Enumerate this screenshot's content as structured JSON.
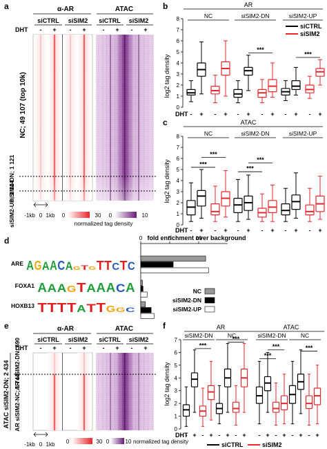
{
  "panels": {
    "a": {
      "letter": "a",
      "col_groups": [
        "α-AR",
        "ATAC"
      ],
      "sub_cols": [
        "siCTRL",
        "siSIM2",
        "siCTRL",
        "siSIM2"
      ],
      "dht_label": "DHT",
      "minus": "-",
      "plus": "+",
      "row_labels": [
        "NC; 49 107 (top 10k)",
        "siSIM2-DN; 1 121",
        "siSIM2-UP; 1 144"
      ],
      "axis_labels": [
        "-1kb",
        "0",
        "1kb"
      ],
      "scale_ar": [
        "0",
        "30"
      ],
      "scale_atac": [
        "0",
        "10"
      ],
      "scale_caption": "normalized tag density"
    },
    "b": {
      "letter": "b",
      "title": "AR",
      "groups": [
        "NC",
        "siSIM2-DN",
        "siSIM2-UP"
      ],
      "ylabel": "log2 tag density",
      "yticks": [
        "0",
        "1",
        "2",
        "3",
        "4",
        "5",
        "6",
        "7",
        "8"
      ],
      "dht_label": "DHT",
      "sig": "***",
      "legend": [
        "siCTRL",
        "siSIM2"
      ]
    },
    "c": {
      "letter": "c",
      "title": "ATAC",
      "groups": [
        "NC",
        "siSIM2-DN",
        "siSIM2-UP"
      ],
      "ylabel": "log2 tag density",
      "yticks": [
        "0",
        "1",
        "2",
        "3",
        "4",
        "5",
        "6",
        "7",
        "8"
      ],
      "dht_label": "DHT",
      "sig": "***"
    },
    "d": {
      "letter": "d",
      "title": "fold enrichment over background",
      "xticks": [
        "0",
        "5",
        "10"
      ],
      "motifs": [
        {
          "name": "ARE",
          "seq": "AGAACAGTGTTCTC"
        },
        {
          "name": "FOXA1",
          "seq": "AAAGTAAACA"
        },
        {
          "name": "HOXB13",
          "seq": "TTTTATTGGC"
        }
      ],
      "legend": [
        "NC",
        "siSIM2-DN",
        "siSIM2-UP"
      ]
    },
    "e": {
      "letter": "e",
      "col_groups": [
        "α-AR",
        "ATAC"
      ],
      "sub_cols": [
        "siCTRL",
        "siSIM2",
        "siCTRL",
        "siSIM2"
      ],
      "dht_label": "DHT",
      "outer_label": "ATAC siSIM2-DN; 2 434",
      "row_labels": [
        "AR siSIM2-DN; 690",
        "AR siSIM2-NC; 1 744"
      ],
      "axis_labels": [
        "-1kb",
        "0",
        "1kb"
      ],
      "scale_ar": [
        "0",
        "30"
      ],
      "scale_atac": [
        "0",
        "10"
      ],
      "scale_caption": "normalized tag density"
    },
    "f": {
      "letter": "f",
      "group_titles": [
        "AR",
        "ATAC"
      ],
      "sub_groups": [
        "siSIM2-DN",
        "NC",
        "siSIM2-DN",
        "NC"
      ],
      "ylabel": "log2 tag density",
      "yticks": [
        "0",
        "1",
        "2",
        "3",
        "4",
        "5",
        "6",
        "7"
      ],
      "dht_label": "DHT",
      "sig": "***",
      "legend": [
        "siCTRL",
        "siSIM2"
      ]
    }
  },
  "colors": {
    "ar_red": "#e8262b",
    "atac_purple": "#8a3a96",
    "ctrl": "#000000",
    "sim2": "#e8262b"
  },
  "chart_data": [
    {
      "type": "box",
      "panel": "b",
      "title": "AR",
      "ylabel": "log2 tag density",
      "ylim": [
        0,
        8
      ],
      "groups": [
        "NC",
        "siSIM2-DN",
        "siSIM2-UP"
      ],
      "boxes": [
        {
          "group": "NC",
          "cond": "siCTRL",
          "dht": "-",
          "q": [
            0,
            0.5,
            1.1,
            1.3,
            1.6,
            2.4
          ]
        },
        {
          "group": "NC",
          "cond": "siCTRL",
          "dht": "+",
          "q": [
            0,
            1.2,
            2.8,
            3.4,
            4.0,
            5.9
          ]
        },
        {
          "group": "NC",
          "cond": "siSIM2",
          "dht": "-",
          "q": [
            0,
            0.4,
            1.2,
            1.5,
            1.9,
            2.9
          ]
        },
        {
          "group": "NC",
          "cond": "siSIM2",
          "dht": "+",
          "q": [
            0,
            1.0,
            2.9,
            3.5,
            4.1,
            6.0
          ]
        },
        {
          "group": "siSIM2-DN",
          "cond": "siCTRL",
          "dht": "-",
          "q": [
            0,
            0.4,
            0.9,
            1.2,
            1.6,
            2.4
          ]
        },
        {
          "group": "siSIM2-DN",
          "cond": "siCTRL",
          "dht": "+",
          "q": [
            0,
            1.5,
            2.9,
            3.3,
            3.6,
            4.7
          ]
        },
        {
          "group": "siSIM2-DN",
          "cond": "siSIM2",
          "dht": "-",
          "q": [
            0,
            0.4,
            0.9,
            1.3,
            1.6,
            2.5
          ]
        },
        {
          "group": "siSIM2-DN",
          "cond": "siSIM2",
          "dht": "+",
          "q": [
            0,
            0.9,
            1.4,
            1.9,
            2.5,
            4.0
          ]
        },
        {
          "group": "siSIM2-UP",
          "cond": "siCTRL",
          "dht": "-",
          "q": [
            0,
            0.6,
            1.1,
            1.4,
            1.7,
            2.4
          ]
        },
        {
          "group": "siSIM2-UP",
          "cond": "siCTRL",
          "dht": "+",
          "q": [
            0,
            1.1,
            1.6,
            1.9,
            2.4,
            3.6
          ]
        },
        {
          "group": "siSIM2-UP",
          "cond": "siSIM2",
          "dht": "-",
          "q": [
            0,
            0.8,
            1.3,
            1.6,
            2.0,
            2.8
          ]
        },
        {
          "group": "siSIM2-UP",
          "cond": "siSIM2",
          "dht": "+",
          "q": [
            0,
            2.0,
            2.8,
            3.2,
            3.5,
            4.3
          ]
        }
      ],
      "significance": [
        {
          "group": "siSIM2-DN",
          "text": "***"
        },
        {
          "group": "siSIM2-UP",
          "text": "***"
        }
      ]
    },
    {
      "type": "box",
      "panel": "c",
      "title": "ATAC",
      "ylabel": "log2 tag density",
      "ylim": [
        0,
        8
      ],
      "groups": [
        "NC",
        "siSIM2-DN",
        "siSIM2-UP"
      ],
      "boxes": [
        {
          "group": "NC",
          "cond": "siCTRL",
          "dht": "-",
          "q": [
            0,
            0.3,
            0.9,
            1.6,
            2.2,
            3.8
          ]
        },
        {
          "group": "NC",
          "cond": "siCTRL",
          "dht": "+",
          "q": [
            0,
            0.6,
            1.7,
            2.6,
            3.1,
            5.0
          ]
        },
        {
          "group": "NC",
          "cond": "siSIM2",
          "dht": "-",
          "q": [
            0,
            0.3,
            0.9,
            1.2,
            1.9,
            3.5
          ]
        },
        {
          "group": "NC",
          "cond": "siSIM2",
          "dht": "+",
          "q": [
            0,
            0.7,
            1.7,
            2.4,
            3.0,
            4.9
          ]
        },
        {
          "group": "siSIM2-DN",
          "cond": "siCTRL",
          "dht": "-",
          "q": [
            0,
            0.3,
            1.1,
            1.8,
            2.4,
            4.1
          ]
        },
        {
          "group": "siSIM2-DN",
          "cond": "siCTRL",
          "dht": "+",
          "q": [
            0,
            0.5,
            1.3,
            2.0,
            2.6,
            4.5
          ]
        },
        {
          "group": "siSIM2-DN",
          "cond": "siSIM2",
          "dht": "-",
          "q": [
            0,
            0.3,
            0.7,
            1.1,
            1.5,
            2.8
          ]
        },
        {
          "group": "siSIM2-DN",
          "cond": "siSIM2",
          "dht": "+",
          "q": [
            0,
            0.3,
            1.1,
            1.6,
            2.2,
            3.6
          ]
        },
        {
          "group": "siSIM2-UP",
          "cond": "siCTRL",
          "dht": "-",
          "q": [
            0,
            0.3,
            0.9,
            1.3,
            1.9,
            3.3
          ]
        },
        {
          "group": "siSIM2-UP",
          "cond": "siCTRL",
          "dht": "+",
          "q": [
            0,
            0.6,
            1.4,
            2.1,
            2.7,
            4.7
          ]
        },
        {
          "group": "siSIM2-UP",
          "cond": "siSIM2",
          "dht": "-",
          "q": [
            0,
            0.3,
            0.9,
            1.2,
            1.8,
            3.3
          ]
        },
        {
          "group": "siSIM2-UP",
          "cond": "siSIM2",
          "dht": "+",
          "q": [
            0,
            0.5,
            1.2,
            1.9,
            2.6,
            4.4
          ]
        }
      ],
      "significance": [
        {
          "group": "NC",
          "text": "***"
        },
        {
          "group": "NC",
          "text": "***"
        },
        {
          "group": "siSIM2-DN",
          "text": "***"
        },
        {
          "group": "siSIM2-DN",
          "text": "***"
        }
      ]
    },
    {
      "type": "bar",
      "panel": "d",
      "title": "fold enrichment over background",
      "xlim": [
        0,
        15
      ],
      "categories": [
        "ARE",
        "FOXA1",
        "HOXB13"
      ],
      "series": [
        {
          "name": "NC",
          "values": [
            11.2,
            0.3,
            0.8
          ]
        },
        {
          "name": "siSIM2-DN",
          "values": [
            5.6,
            0.4,
            1.8
          ]
        },
        {
          "name": "siSIM2-UP",
          "values": [
            11.7,
            1.1,
            2.3
          ]
        }
      ]
    },
    {
      "type": "box",
      "panel": "f",
      "ylabel": "log2 tag density",
      "ylim": [
        0,
        7
      ],
      "groups": [
        "AR siSIM2-DN",
        "AR NC",
        "ATAC siSIM2-DN",
        "ATAC NC"
      ],
      "boxes": [
        {
          "group": "AR siSIM2-DN",
          "cond": "siCTRL",
          "dht": "-",
          "q": [
            0,
            0.2,
            1.0,
            1.5,
            1.9,
            3.3
          ]
        },
        {
          "group": "AR siSIM2-DN",
          "cond": "siCTRL",
          "dht": "+",
          "q": [
            0,
            1.3,
            3.3,
            3.9,
            4.4,
            6.2
          ]
        },
        {
          "group": "AR siSIM2-DN",
          "cond": "siSIM2",
          "dht": "-",
          "q": [
            0,
            0.2,
            1.0,
            1.4,
            1.8,
            3.2
          ]
        },
        {
          "group": "AR siSIM2-DN",
          "cond": "siSIM2",
          "dht": "+",
          "q": [
            0,
            0.7,
            2.3,
            2.9,
            3.4,
            5.3
          ]
        },
        {
          "group": "AR NC",
          "cond": "siCTRL",
          "dht": "-",
          "q": [
            0,
            0.4,
            1.2,
            1.6,
            2.0,
            3.4
          ]
        },
        {
          "group": "AR NC",
          "cond": "siCTRL",
          "dht": "+",
          "q": [
            0,
            1.3,
            3.3,
            4.0,
            4.7,
            6.7
          ]
        },
        {
          "group": "AR NC",
          "cond": "siSIM2",
          "dht": "-",
          "q": [
            0,
            0.3,
            1.3,
            1.6,
            2.1,
            3.4
          ]
        },
        {
          "group": "AR NC",
          "cond": "siSIM2",
          "dht": "+",
          "q": [
            0,
            1.3,
            3.3,
            4.0,
            4.7,
            6.7
          ]
        },
        {
          "group": "ATAC siSIM2-DN",
          "cond": "siCTRL",
          "dht": "-",
          "q": [
            0,
            0.4,
            2.0,
            2.6,
            3.3,
            5.3
          ]
        },
        {
          "group": "ATAC siSIM2-DN",
          "cond": "siCTRL",
          "dht": "+",
          "q": [
            0,
            1.3,
            3.0,
            3.6,
            4.1,
            6.0
          ]
        },
        {
          "group": "ATAC siSIM2-DN",
          "cond": "siSIM2",
          "dht": "-",
          "q": [
            0,
            0.3,
            1.3,
            1.6,
            2.1,
            3.6
          ]
        },
        {
          "group": "ATAC siSIM2-DN",
          "cond": "siSIM2",
          "dht": "+",
          "q": [
            0,
            0.4,
            1.5,
            2.0,
            2.6,
            4.3
          ]
        },
        {
          "group": "ATAC NC",
          "cond": "siCTRL",
          "dht": "-",
          "q": [
            0,
            0.4,
            2.0,
            2.7,
            3.4,
            5.3
          ]
        },
        {
          "group": "ATAC NC",
          "cond": "siCTRL",
          "dht": "+",
          "q": [
            0,
            1.2,
            3.1,
            3.7,
            4.3,
            6.2
          ]
        },
        {
          "group": "ATAC NC",
          "cond": "siSIM2",
          "dht": "-",
          "q": [
            0,
            0.3,
            1.6,
            2.0,
            2.6,
            4.3
          ]
        },
        {
          "group": "ATAC NC",
          "cond": "siSIM2",
          "dht": "+",
          "q": [
            0,
            0.4,
            1.9,
            2.6,
            3.2,
            5.0
          ]
        }
      ],
      "significance": [
        {
          "group": "AR siSIM2-DN",
          "text": "***"
        },
        {
          "group": "AR NC",
          "text": "***"
        },
        {
          "group": "ATAC siSIM2-DN",
          "text": "***"
        },
        {
          "group": "ATAC siSIM2-DN",
          "text": "***"
        },
        {
          "group": "ATAC NC",
          "text": "***"
        }
      ]
    }
  ]
}
